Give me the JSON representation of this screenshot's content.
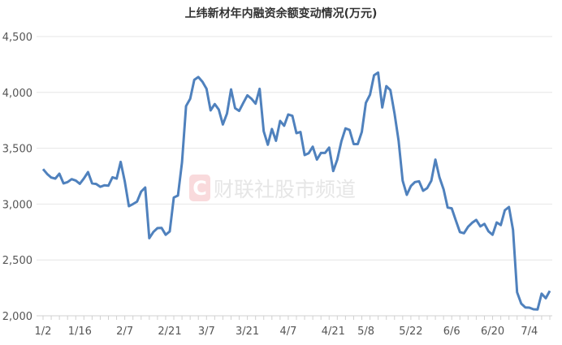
{
  "chart_data": {
    "type": "line",
    "title": "上纬新材年内融资余额变动情况(万元)",
    "xlabel": "",
    "ylabel": "",
    "ylim": [
      2000,
      4500
    ],
    "yticks": [
      2000,
      2500,
      3000,
      3500,
      4000,
      4500
    ],
    "ytick_labels": [
      "2,000",
      "2,500",
      "3,000",
      "3,500",
      "4,000",
      "4,500"
    ],
    "x_tick_labels": [
      "1/2",
      "1/16",
      "2/7",
      "2/21",
      "3/7",
      "3/21",
      "4/7",
      "4/21",
      "5/8",
      "5/22",
      "6/6",
      "6/20",
      "7/4"
    ],
    "x_tick_index": [
      0,
      9,
      20,
      31,
      40,
      50,
      60,
      71,
      79,
      90,
      100,
      110,
      119
    ],
    "grid": true,
    "color": "#4f81bd",
    "series": [
      {
        "values": [
          3313,
          3270,
          3238,
          3228,
          3272,
          3185,
          3197,
          3223,
          3211,
          3182,
          3230,
          3286,
          3185,
          3180,
          3155,
          3168,
          3165,
          3240,
          3228,
          3378,
          3204,
          2981,
          3000,
          3022,
          3112,
          3148,
          2695,
          2751,
          2785,
          2787,
          2725,
          2755,
          3059,
          3076,
          3373,
          3877,
          3943,
          4112,
          4137,
          4095,
          4032,
          3839,
          3895,
          3846,
          3713,
          3810,
          4027,
          3858,
          3834,
          3906,
          3974,
          3943,
          3899,
          4032,
          3652,
          3531,
          3672,
          3567,
          3744,
          3701,
          3802,
          3790,
          3635,
          3645,
          3439,
          3456,
          3514,
          3398,
          3458,
          3458,
          3506,
          3296,
          3398,
          3563,
          3677,
          3664,
          3537,
          3537,
          3646,
          3906,
          3979,
          4153,
          4177,
          3865,
          4056,
          4020,
          3810,
          3567,
          3209,
          3083,
          3161,
          3197,
          3204,
          3119,
          3143,
          3209,
          3398,
          3240,
          3132,
          2969,
          2962,
          2853,
          2749,
          2739,
          2797,
          2833,
          2858,
          2800,
          2823,
          2756,
          2725,
          2836,
          2812,
          2945,
          2974,
          2768,
          2211,
          2109,
          2075,
          2073,
          2058,
          2056,
          2198,
          2157,
          2223
        ]
      }
    ]
  },
  "watermark": {
    "text": "财联社股市频道",
    "logo_letter": "C",
    "logo_color": "#f5c6c9"
  }
}
